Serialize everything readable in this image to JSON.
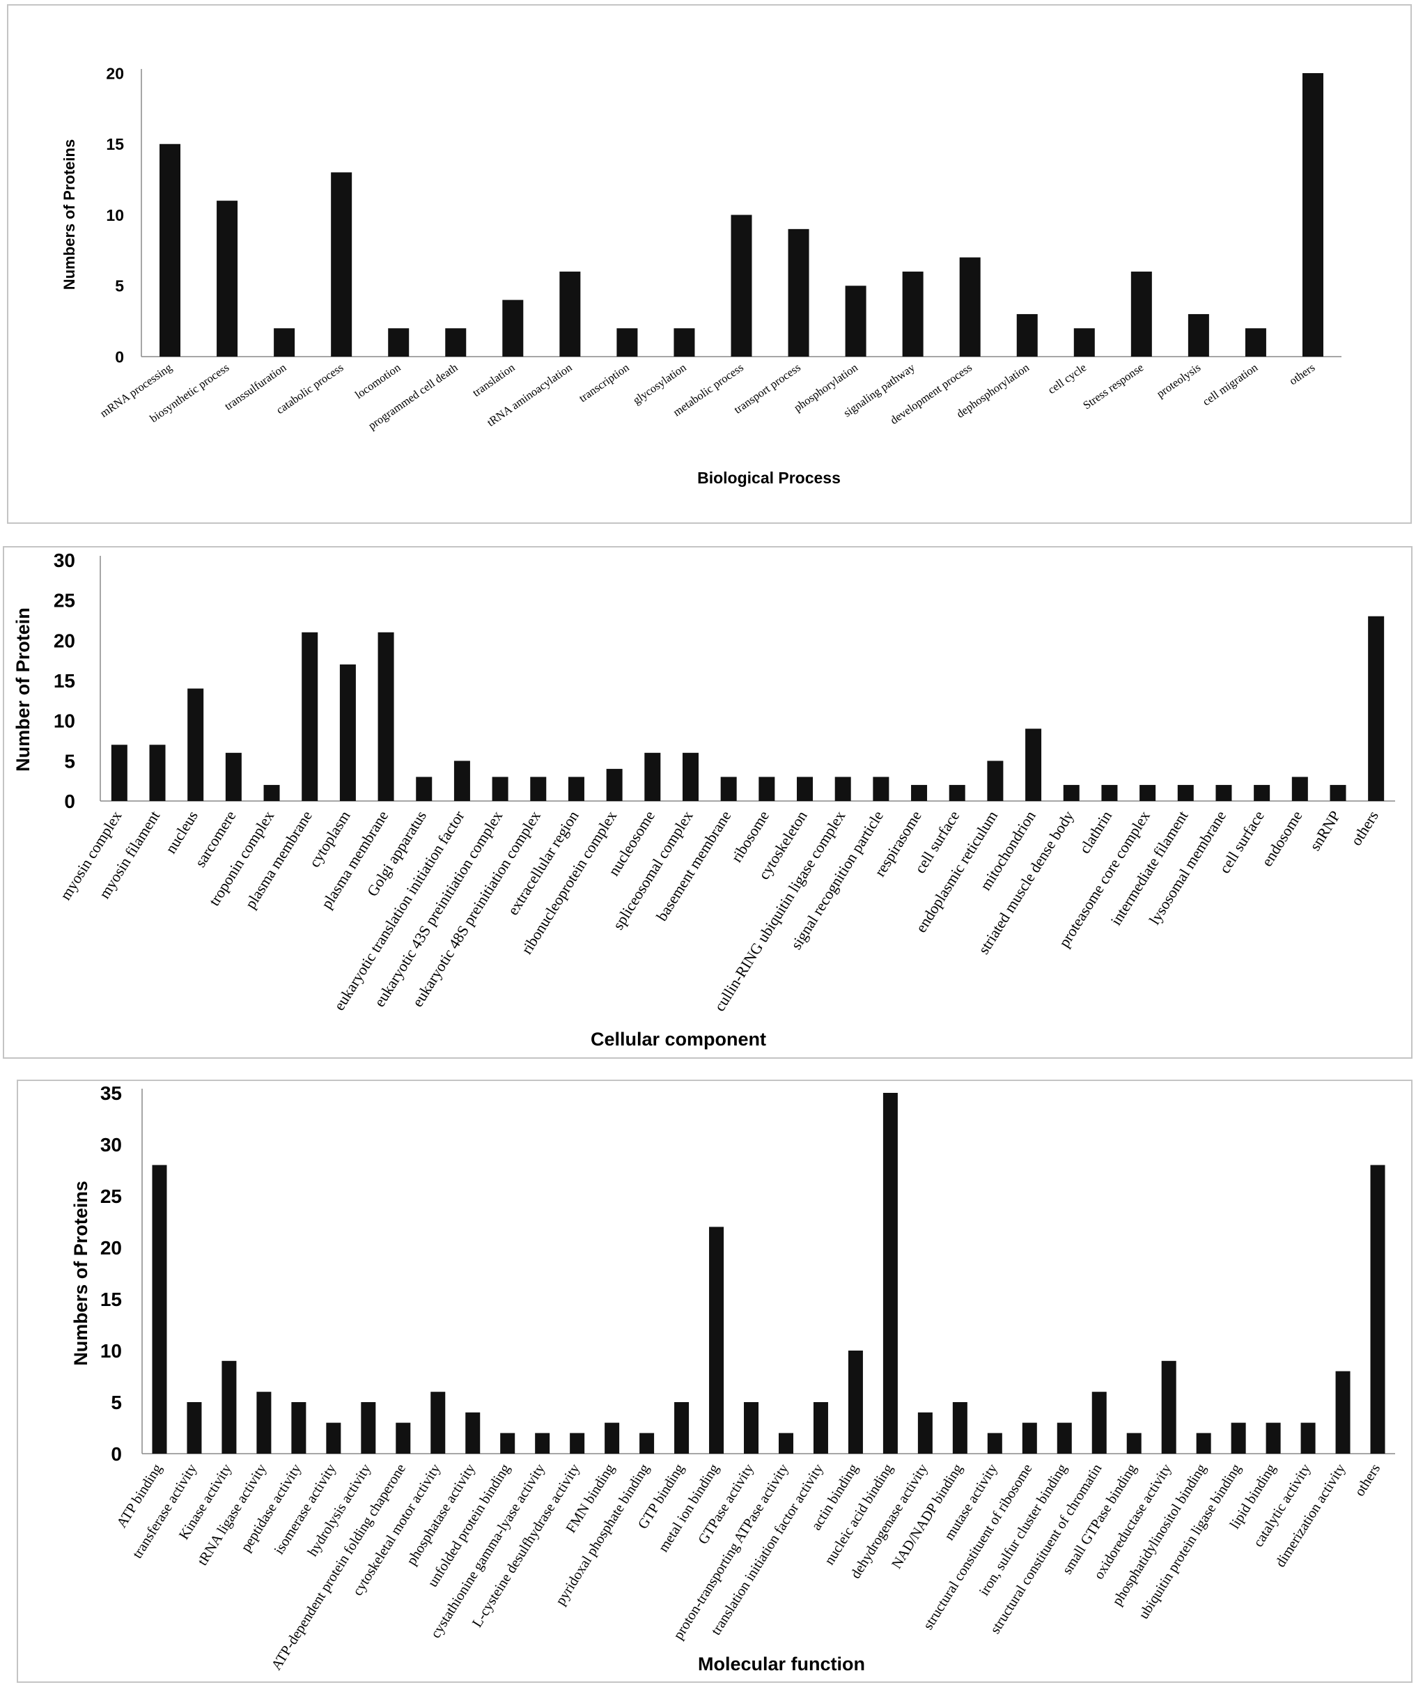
{
  "chart_data": [
    {
      "type": "bar",
      "xlabel": "Biological Process",
      "ylabel": "Numbers of Proteins",
      "ylim": [
        0,
        20
      ],
      "yticks": [
        "0",
        "5",
        "10",
        "15",
        "20"
      ],
      "categories": [
        "mRNA processing",
        "biosynthetic process",
        "transsulfuration",
        "catabolic process",
        "locomotion",
        "programmed cell death",
        "translation",
        "tRNA aminoacylation",
        "transcription",
        "glycosylation",
        "metabolic process",
        "transport process",
        "phosphorylation",
        "signaling pathway",
        "development process",
        "dephosphorylation",
        "cell cycle",
        "Stress response",
        "proteolysis",
        "cell migration",
        "others"
      ],
      "values": [
        15,
        11,
        2,
        13,
        2,
        2,
        4,
        6,
        2,
        2,
        10,
        9,
        5,
        6,
        7,
        3,
        2,
        6,
        3,
        2,
        20
      ],
      "grid": false,
      "color": "#111111"
    },
    {
      "type": "bar",
      "xlabel": "Cellular component",
      "ylabel": "Number of Protein",
      "ylim": [
        0,
        30
      ],
      "yticks": [
        "0",
        "5",
        "10",
        "15",
        "20",
        "25",
        "30"
      ],
      "categories": [
        "myosin complex",
        "myosin filament",
        "nucleus",
        "sarcomere",
        "troponin complex",
        "plasma membrane",
        "cytoplasm",
        "plasma membrane",
        "Golgi apparatus",
        "eukaryotic translation initiation factor",
        "eukaryotic 43S preinitiation complex",
        "eukaryotic 48S preinitiation complex",
        "extracellular region",
        "ribonucleoprotein complex",
        "nucleosome",
        "spliceosomal complex",
        "basement membrane",
        "ribosome",
        "cytoskeleton",
        "cullin-RING ubiquitin ligase complex",
        "signal recognition particle",
        "respirasome",
        "cell surface",
        "endoplasmic reticulum",
        "mitochondrion",
        "striated muscle dense body",
        "clathrin",
        "proteasome core complex",
        "intermediate filament",
        "lysosomal membrane",
        "cell surface",
        "endosome",
        "snRNP",
        "others"
      ],
      "values": [
        7,
        7,
        14,
        6,
        2,
        21,
        17,
        21,
        3,
        5,
        3,
        3,
        3,
        4,
        6,
        6,
        3,
        3,
        3,
        3,
        3,
        2,
        2,
        5,
        9,
        2,
        2,
        2,
        2,
        2,
        2,
        3,
        2,
        23
      ],
      "grid": false,
      "color": "#111111"
    },
    {
      "type": "bar",
      "xlabel": "Molecular function",
      "ylabel": "Numbers of Proteins",
      "ylim": [
        0,
        35
      ],
      "yticks": [
        "0",
        "5",
        "10",
        "15",
        "20",
        "25",
        "30",
        "35"
      ],
      "categories": [
        "ATP binding",
        "transferase activity",
        "Kinase activity",
        "tRNA ligase activity",
        "peptidase activity",
        "isomerase activity",
        "hydrolysis activity",
        "ATP-dependent protein folding chaperone",
        "cytoskeletal motor activity",
        "phosphatase activity",
        "unfolded protein binding",
        "cystathionine gamma-lyase activity",
        "L-cysteine desulfhydrase activity",
        "FMN binding",
        "pyridoxal phosphate binding",
        "GTP binding",
        "metal ion binding",
        "GTPase activity",
        "proton-transporting ATPase activity",
        "translation initiation factor activity",
        "actin binding",
        "nucleic acid binding",
        "dehydrogenase activity",
        "NAD/NADP binding",
        "mutase activity",
        "structural constituent of ribosome",
        "iron, sulfur cluster binding",
        "structural constituent of chromatin",
        "small GTPase binding",
        "oxidoreductase activity",
        "phosphatidylinositol binding",
        "ubiquitin protein ligase binding",
        "lipid binding",
        "catalytic activity",
        "dimerization activity",
        "others"
      ],
      "values": [
        28,
        5,
        9,
        6,
        5,
        3,
        5,
        3,
        6,
        4,
        2,
        2,
        2,
        3,
        2,
        5,
        22,
        5,
        2,
        5,
        10,
        35,
        4,
        5,
        2,
        3,
        3,
        6,
        2,
        9,
        2,
        3,
        3,
        3,
        8,
        28
      ],
      "grid": false,
      "color": "#111111"
    }
  ]
}
